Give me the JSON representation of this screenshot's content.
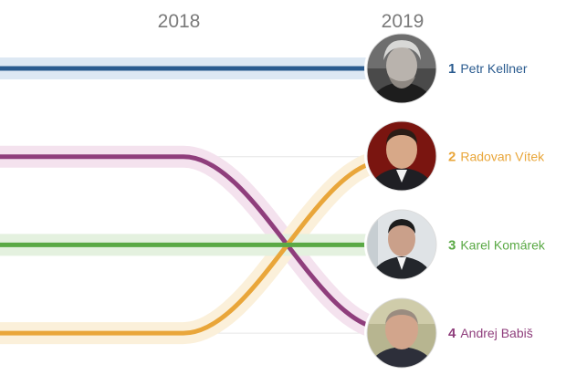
{
  "chart_data": {
    "type": "line",
    "x": [
      "2018",
      "2019"
    ],
    "yaxis": {
      "reversed": true,
      "range": [
        1,
        4
      ]
    },
    "grid": true,
    "legend": "none",
    "series": [
      {
        "rank_label": "1",
        "name": "Petr Kellner",
        "color": "#2a5b8f",
        "halo": "#dde8f3",
        "values": [
          1,
          1
        ],
        "photo": "portrait-grey-hair"
      },
      {
        "rank_label": "2",
        "name": "Radovan Vítek",
        "color": "#e9a63a",
        "halo": "#fbf0da",
        "values": [
          4,
          2
        ],
        "photo": "portrait-red-background"
      },
      {
        "rank_label": "3",
        "name": "Karel Komárek",
        "color": "#5aa945",
        "halo": "#e4f1df",
        "values": [
          3,
          3
        ],
        "photo": "portrait-dark-suit"
      },
      {
        "rank_label": "4",
        "name": "Andrej Babiš",
        "color": "#8f3e7c",
        "halo": "#f4e2ee",
        "values": [
          2,
          4
        ],
        "photo": "portrait-bald"
      }
    ]
  }
}
